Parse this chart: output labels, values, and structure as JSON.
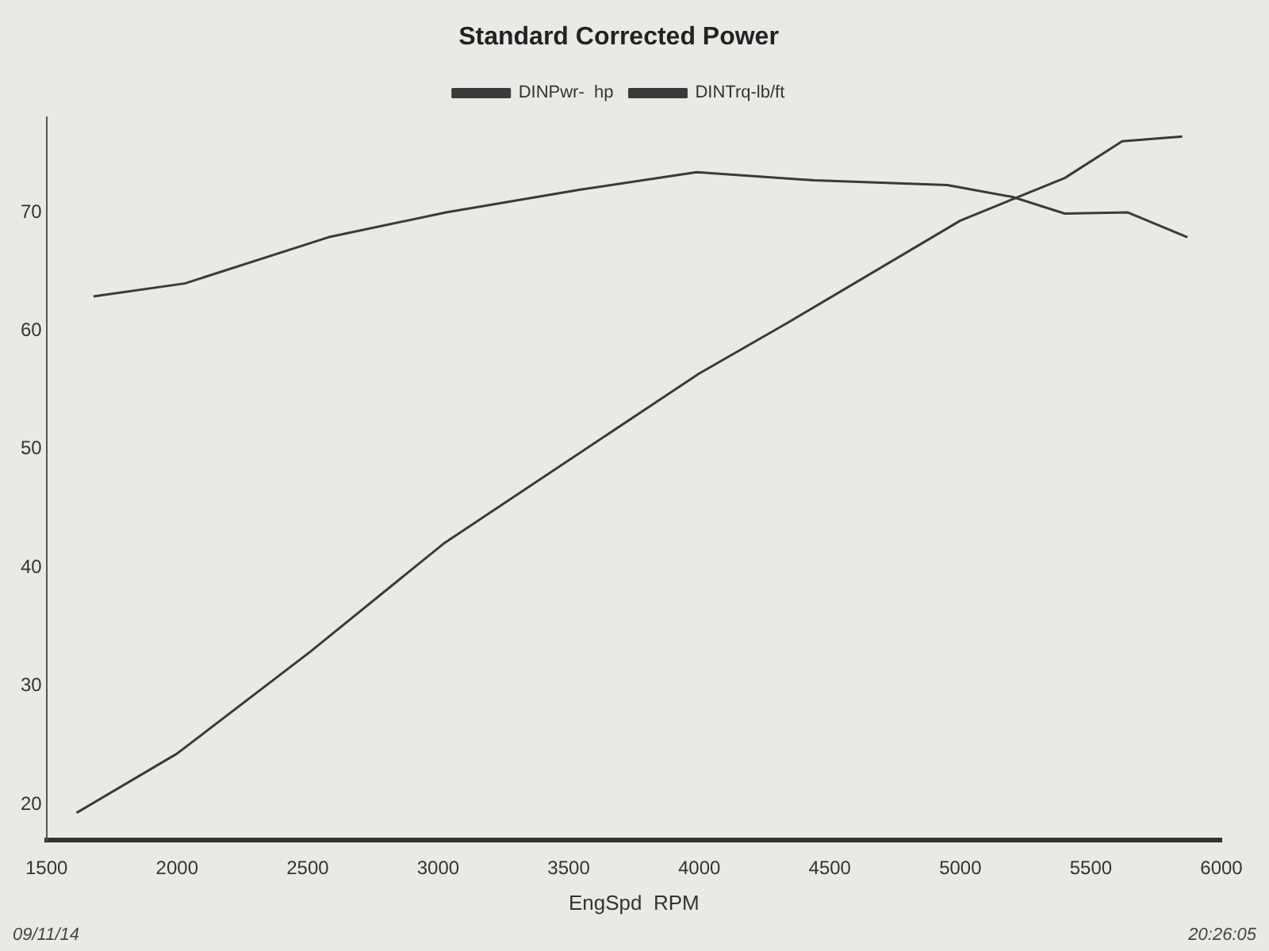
{
  "chart_data": {
    "type": "line",
    "title": "Standard Corrected Power",
    "xlabel": "EngSpd  RPM",
    "series": [
      {
        "name": "DINPwr-  hp",
        "color": "#3a3a3a",
        "x": [
          1615,
          2000,
          2510,
          3025,
          4000,
          4340,
          5000,
          5400,
          5620,
          5850
        ],
        "values": [
          19.3,
          24.3,
          32.9,
          42.1,
          56.4,
          60.7,
          69.3,
          72.9,
          76,
          76.4
        ]
      },
      {
        "name": "DINTrq-lb/ft",
        "color": "#3a3a3a",
        "x": [
          1680,
          2030,
          2580,
          3030,
          3540,
          3990,
          4440,
          4950,
          5200,
          5400,
          5640,
          5870
        ],
        "values": [
          62.9,
          64,
          67.9,
          70,
          71.9,
          73.4,
          72.7,
          72.3,
          71.3,
          69.9,
          70,
          67.9
        ]
      }
    ],
    "xlim": [
      1500,
      6000
    ],
    "xticks": [
      1500,
      2000,
      2500,
      3000,
      3500,
      4000,
      4500,
      5000,
      5500,
      6000
    ],
    "ylim": [
      17,
      78
    ],
    "yticks": [
      20,
      30,
      40,
      50,
      60,
      70
    ],
    "grid": false,
    "legend": "top",
    "marker": "none",
    "line_style": "solid",
    "annotations": [
      "09/11/14",
      "20:26:05"
    ]
  }
}
